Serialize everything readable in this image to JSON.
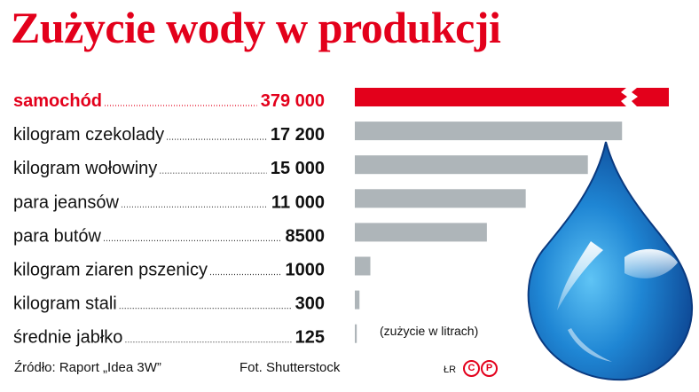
{
  "title": "Zużycie wody w produkcji",
  "unit_note": "(zużycie w litrach)",
  "source": "Źródło: Raport „Idea 3W”",
  "photo": "Fot. Shutterstock",
  "signature": "ŁR",
  "logo_letters": [
    "C",
    "P"
  ],
  "colors": {
    "highlight": "#e3001b",
    "bar": "#aeb5b9",
    "drop": "#1565c0"
  },
  "chart_data": {
    "type": "bar",
    "orientation": "horizontal",
    "categories": [
      "samochód",
      "kilogram czekolady",
      "kilogram wołowiny",
      "para jeansów",
      "para butów",
      "kilogram ziaren pszenicy",
      "kilogram stali",
      "średnie jabłko"
    ],
    "value_labels": [
      "379 000",
      "17 200",
      "15 000",
      "11 000",
      "8500",
      "1000",
      "300",
      "125"
    ],
    "values": [
      379000,
      17200,
      15000,
      11000,
      8500,
      1000,
      300,
      125
    ],
    "highlight_index": 0,
    "axis_break": true,
    "xlim": [
      0,
      17700
    ]
  }
}
